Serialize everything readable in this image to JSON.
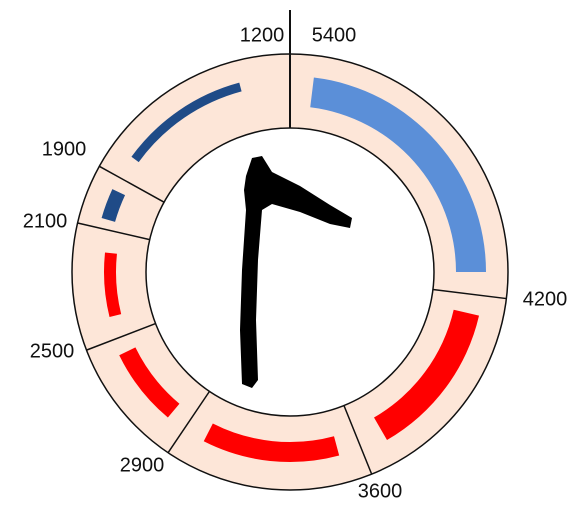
{
  "labels": [
    "1200",
    "5400",
    "4200",
    "3600",
    "2900",
    "2500",
    "2100",
    "1900"
  ],
  "segments": [
    {
      "color": "#5b8fd8"
    },
    {
      "color": "#ff0000"
    },
    {
      "color": "#ff0000"
    },
    {
      "color": "#ff0000"
    },
    {
      "color": "#ff0000"
    },
    {
      "color": "#1f4b87"
    },
    {
      "color": "#1f4b87"
    }
  ]
}
